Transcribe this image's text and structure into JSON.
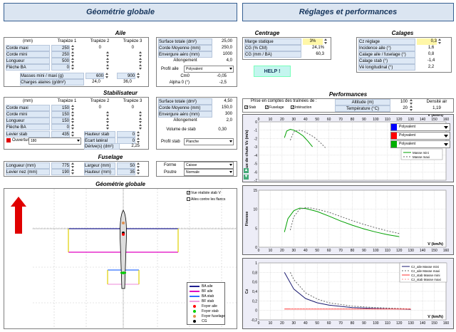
{
  "headers": {
    "left": "Géométrie globale",
    "right": "Réglages et performances"
  },
  "aile": {
    "title": "Aile",
    "cols": [
      "(mm)",
      "Trapèze 1",
      "Trapèze 2",
      "Trapèze 3"
    ],
    "rows": [
      {
        "label": "Corde maxi",
        "t1": "250",
        "t2": "0",
        "t3": "0"
      },
      {
        "label": "Corde mini",
        "t1": "250",
        "t2": "",
        "t3": ""
      },
      {
        "label": "Longueur",
        "t1": "500",
        "t2": "",
        "t3": ""
      },
      {
        "label": "Flèche BA",
        "t1": "0",
        "t2": "",
        "t3": ""
      }
    ],
    "masses_label": "Masses mini / maxi  (g)",
    "masse_min": "600",
    "masse_max": "900",
    "charges_label": "Charges alaires (g/dm²)",
    "charge_min": "24,0",
    "charge_max": "36,0",
    "stats": [
      {
        "label": "Surface totale (dm²)",
        "value": "25,00"
      },
      {
        "label": "Corde Moyenne (mm)",
        "value": "250,0"
      },
      {
        "label": "Envergure aéro (mm)",
        "value": "1000"
      },
      {
        "label": "Allongement",
        "value": "4,0"
      }
    ],
    "profil_label": "Profil aile",
    "profil_value": "Polyvalent",
    "cm0_label": "Cm0",
    "cm0_value": "-0,05",
    "alpha0_label": "Alpha 0 (°)",
    "alpha0_value": "-2,5"
  },
  "stab": {
    "title": "Stabilisateur",
    "cols": [
      "(mm)",
      "Trapèze 1",
      "Trapèze 2",
      "Trapèze 3"
    ],
    "rows": [
      {
        "label": "Corde maxi",
        "t1": "150",
        "t2": "0",
        "t3": "0"
      },
      {
        "label": "Corde mini",
        "t1": "150",
        "t2": "",
        "t3": ""
      },
      {
        "label": "Longueur",
        "t1": "150",
        "t2": "",
        "t3": ""
      },
      {
        "label": "Flèche BA",
        "t1": "0",
        "t2": "",
        "t3": ""
      }
    ],
    "levier_label": "Levier stab",
    "levier_value": "435",
    "hauteur_label": "Hauteur stab",
    "hauteur_value": "0",
    "ouverture_label": "Ouverture (°)",
    "ouverture_value": "180",
    "ecart_label": "Ecart latéral",
    "ecart_value": "0",
    "derive_label": "Dérive(s) (dm²)",
    "derive_value": "2,25",
    "stats": [
      {
        "label": "Surface totale (dm²)",
        "value": "4,50"
      },
      {
        "label": "Corde Moyenne (mm)",
        "value": "150,0"
      },
      {
        "label": "Envergure aéro (mm)",
        "value": "300"
      },
      {
        "label": "Allongement",
        "value": "2,0"
      }
    ],
    "volume_label": "Volume de stab",
    "volume_value": "0,30",
    "profil_label": "Profil stab",
    "profil_value": "Planche"
  },
  "fuselage": {
    "title": "Fuselage",
    "longueur_label": "Longueur (mm)",
    "longueur_value": "775",
    "largeur_label": "Largeur (mm)",
    "largeur_value": "50",
    "levier_nez_label": "Levier nez (mm)",
    "levier_nez_value": "190",
    "hauteur_label": "Hauteur (mm)",
    "hauteur_value": "35",
    "forme_label": "Forme",
    "forme_value": "Caisse",
    "poutre_label": "Poutre",
    "poutre_value": "Normale"
  },
  "geometrie": {
    "title": "Géométrie globale",
    "check1": "Vue réaliste stab V",
    "check2": "Ailes contre les flancs",
    "legend": [
      {
        "label": "BA aile",
        "color": "#1f1f8f"
      },
      {
        "label": "BF aile",
        "color": "#e000c0"
      },
      {
        "label": "BA stab",
        "color": "#3070ff"
      },
      {
        "label": "BF stab",
        "color": "#f0a0e0"
      },
      {
        "label": "Foyer aile",
        "color": "#ff0000"
      },
      {
        "label": "Foyer stab",
        "color": "#00d000"
      },
      {
        "label": "Foyer fuselage",
        "color": "#e09050"
      },
      {
        "label": "CG",
        "color": "#000000"
      }
    ]
  },
  "centrage": {
    "title": "Centrage",
    "rows": [
      {
        "label": "Marge statique",
        "value": "3%"
      },
      {
        "label": "CG (% CM)",
        "value": "24,1%"
      },
      {
        "label": "CG (mm / BA)",
        "value": "60,3"
      }
    ]
  },
  "calages": {
    "title": "Calages",
    "rows": [
      {
        "label": "Cz réglage",
        "value": "0,3"
      },
      {
        "label": "Incidence aile (°)",
        "value": "1,6"
      },
      {
        "label": "Calage aile / fuselage (°)",
        "value": "0,8"
      },
      {
        "label": "Calage stab (°)",
        "value": "-1,4"
      },
      {
        "label": "Vé longitudinal (°)",
        "value": "2,2"
      }
    ]
  },
  "help_label": "HELP !",
  "perf": {
    "title": "Performances",
    "trainees_label": "Prise en comptes des traînées de :",
    "chk_stab": "Stab",
    "chk_fuselage": "Fuselage",
    "chk_interaction": "Intéraction",
    "altitude_label": "Altitude (m)",
    "altitude_value": "100",
    "temp_label": "Température (°C)",
    "temp_value": "20",
    "densite_label": "Densité air",
    "densite_value": "1,19",
    "profiles": [
      "Polyvalent",
      "Polyvalent",
      "Polyvalent"
    ],
    "profile_colors": [
      "#0000ff",
      "#ff0000",
      "#00b000"
    ]
  },
  "chart_data": [
    {
      "type": "line",
      "ylabel": "Taux de chute Vz (m/s)",
      "xlabel": "V (km/h)",
      "xticks": [
        "0",
        "10",
        "20",
        "30",
        "40",
        "50",
        "60",
        "70",
        "80",
        "90",
        "100",
        "110",
        "120",
        "130",
        "140",
        "150",
        "160"
      ],
      "yticks": [
        "0",
        "-1",
        "-2",
        "-3",
        "-4",
        "-5",
        "-6",
        "-7"
      ],
      "xlim": [
        0,
        160
      ],
      "ylim": [
        -7,
        0
      ],
      "legend": [
        "Masse mini",
        "Masse maxi"
      ],
      "series": [
        {
          "name": "Masse mini",
          "x": [
            22,
            24,
            27,
            30,
            34,
            38,
            42,
            46
          ],
          "y": [
            -1.9,
            -1.1,
            -0.9,
            -1.0,
            -1.3,
            -1.7,
            -2.3,
            -3.0
          ]
        },
        {
          "name": "Masse maxi",
          "x": [
            27,
            30,
            34,
            38,
            42,
            47,
            52,
            57
          ],
          "y": [
            -2.2,
            -1.2,
            -1.0,
            -1.1,
            -1.4,
            -1.8,
            -2.4,
            -3.1
          ]
        }
      ]
    },
    {
      "type": "line",
      "ylabel": "Finesse",
      "xlabel": "V (km/h)",
      "xticks": [
        "0",
        "10",
        "20",
        "30",
        "40",
        "50",
        "60",
        "70",
        "80",
        "90",
        "100",
        "110",
        "120",
        "130",
        "140",
        "150",
        "160"
      ],
      "yticks": [
        "0",
        "5",
        "10",
        "15"
      ],
      "xlim": [
        0,
        160
      ],
      "ylim": [
        0,
        15
      ],
      "series": [
        {
          "name": "Masse mini",
          "x": [
            22,
            25,
            30,
            35,
            40,
            50,
            60,
            70,
            80,
            90,
            100,
            110,
            120
          ],
          "y": [
            4,
            7.5,
            9.6,
            10.3,
            10.2,
            9.4,
            8.2,
            6.9,
            5.8,
            4.8,
            4.0,
            3.3,
            2.8
          ]
        },
        {
          "name": "Masse maxi",
          "x": [
            27,
            30,
            35,
            40,
            45,
            50,
            60,
            70,
            80,
            90,
            100,
            110,
            120
          ],
          "y": [
            4.5,
            8,
            10,
            10.4,
            10.3,
            10,
            9.2,
            8.1,
            7.0,
            6.0,
            5.1,
            4.3,
            3.6
          ]
        }
      ]
    },
    {
      "type": "line",
      "ylabel": "Cz",
      "xlabel": "V (km/h)",
      "xticks": [
        "0",
        "10",
        "20",
        "30",
        "40",
        "50",
        "60",
        "70",
        "80",
        "90",
        "100",
        "110",
        "120",
        "130",
        "140",
        "150",
        "160"
      ],
      "yticks": [
        "-0,2",
        "0",
        "0,2",
        "0,4",
        "0,6",
        "0,8",
        "1"
      ],
      "xlim": [
        0,
        160
      ],
      "ylim": [
        -0.2,
        1
      ],
      "legend": [
        "Cz_aile Masse mini",
        "Cz_aile Masse maxi",
        "Cz_stab Masse mini",
        "Cz_stab Masse maxi"
      ],
      "series": [
        {
          "name": "Cz_aile Masse mini",
          "x": [
            22,
            30,
            40,
            50,
            60,
            80,
            100,
            120,
            130
          ],
          "y": [
            0.8,
            0.45,
            0.25,
            0.16,
            0.11,
            0.06,
            0.04,
            0.03,
            0.02
          ]
        },
        {
          "name": "Cz_aile Masse maxi",
          "x": [
            27,
            30,
            40,
            50,
            60,
            80,
            100,
            120,
            130
          ],
          "y": [
            0.8,
            0.65,
            0.37,
            0.24,
            0.16,
            0.09,
            0.06,
            0.04,
            0.03
          ]
        },
        {
          "name": "Cz_stab Masse mini",
          "x": [
            22,
            130
          ],
          "y": [
            0.03,
            0.03
          ]
        },
        {
          "name": "Cz_stab Masse maxi",
          "x": [
            27,
            130
          ],
          "y": [
            0.03,
            0.03
          ]
        }
      ]
    }
  ]
}
